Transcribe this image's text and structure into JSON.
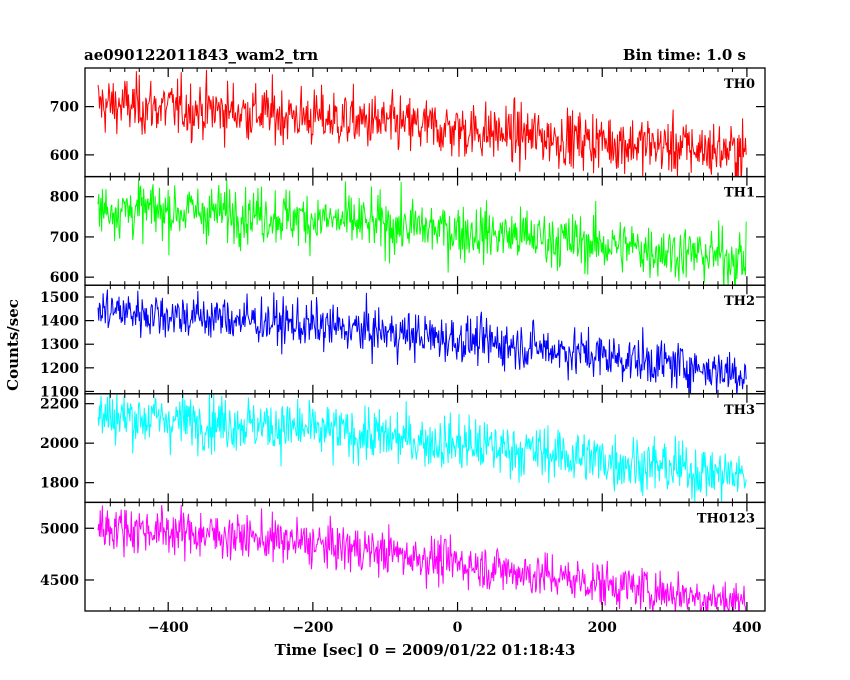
{
  "chart_data": {
    "type": "line",
    "title_left": "ae090122011843_wam2_trn",
    "title_right": "Bin time: 1.0 s",
    "xlabel": "Time [sec] 0 = 2009/01/22 01:18:43",
    "ylabel": "Counts/sec",
    "xlim": [
      -515,
      425
    ],
    "x_ticks": [
      -400,
      -200,
      0,
      200,
      400
    ],
    "x_tick_labels": [
      "−400",
      "−200",
      "0",
      "200",
      "400"
    ],
    "x_range": [
      -497,
      399
    ],
    "x_step": 1,
    "panels": [
      {
        "name": "TH0",
        "color": "#ff0000",
        "ylim": [
          555,
          780
        ],
        "y_ticks": [
          600,
          700
        ],
        "y_tick_labels": [
          "600",
          "700"
        ],
        "trend": [
          [
            -497,
            705
          ],
          [
            -300,
            690
          ],
          [
            -100,
            665
          ],
          [
            100,
            640
          ],
          [
            399,
            605
          ]
        ],
        "noise": 30
      },
      {
        "name": "TH1",
        "color": "#00ff00",
        "ylim": [
          580,
          850
        ],
        "y_ticks": [
          600,
          700,
          800
        ],
        "y_tick_labels": [
          "600",
          "700",
          "800"
        ],
        "trend": [
          [
            -497,
            770
          ],
          [
            -300,
            760
          ],
          [
            -100,
            730
          ],
          [
            100,
            700
          ],
          [
            399,
            645
          ]
        ],
        "noise": 35
      },
      {
        "name": "TH2",
        "color": "#0000ff",
        "ylim": [
          1090,
          1550
        ],
        "y_ticks": [
          1100,
          1200,
          1300,
          1400,
          1500
        ],
        "y_tick_labels": [
          "1100",
          "1200",
          "1300",
          "1400",
          "1500"
        ],
        "trend": [
          [
            -497,
            1445
          ],
          [
            -300,
            1405
          ],
          [
            -100,
            1350
          ],
          [
            100,
            1290
          ],
          [
            399,
            1175
          ]
        ],
        "noise": 50
      },
      {
        "name": "TH3",
        "color": "#00ffff",
        "ylim": [
          1700,
          2250
        ],
        "y_ticks": [
          1800,
          2000,
          2200
        ],
        "y_tick_labels": [
          "1800",
          "2000",
          "2200"
        ],
        "trend": [
          [
            -497,
            2140
          ],
          [
            -300,
            2100
          ],
          [
            -100,
            2030
          ],
          [
            100,
            1960
          ],
          [
            399,
            1830
          ]
        ],
        "noise": 70
      },
      {
        "name": "TH0123",
        "color": "#ff00ff",
        "ylim": [
          4200,
          5250
        ],
        "y_ticks": [
          4500,
          5000
        ],
        "y_tick_labels": [
          "4500",
          "5000"
        ],
        "trend": [
          [
            -497,
            5020
          ],
          [
            -300,
            4920
          ],
          [
            -100,
            4770
          ],
          [
            100,
            4560
          ],
          [
            399,
            4280
          ]
        ],
        "noise": 110
      }
    ]
  }
}
